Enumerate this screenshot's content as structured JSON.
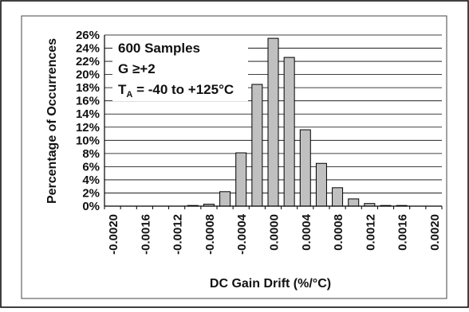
{
  "chart_data": {
    "type": "bar",
    "categories": [
      "-0.0020",
      "-0.0018",
      "-0.0016",
      "-0.0014",
      "-0.0012",
      "-0.0010",
      "-0.0008",
      "-0.0006",
      "-0.0004",
      "-0.0002",
      "0.0000",
      "0.0002",
      "0.0004",
      "0.0006",
      "0.0008",
      "0.0010",
      "0.0012",
      "0.0014",
      "0.0016",
      "0.0018",
      "0.0020"
    ],
    "tick_labels": [
      "-0.0020",
      "-0.0016",
      "-0.0012",
      "-0.0008",
      "-0.0004",
      "0.0000",
      "0.0004",
      "0.0008",
      "0.0012",
      "0.0016",
      "0.0020"
    ],
    "values": [
      0,
      0,
      0,
      0,
      0,
      0.1,
      0.3,
      2.2,
      8.1,
      18.5,
      25.5,
      22.6,
      11.6,
      6.5,
      2.8,
      1.1,
      0.4,
      0.1,
      0.1,
      0,
      0
    ],
    "y_ticks": [
      "0%",
      "2%",
      "4%",
      "6%",
      "8%",
      "10%",
      "12%",
      "14%",
      "16%",
      "18%",
      "20%",
      "22%",
      "24%",
      "26%"
    ],
    "ylim": [
      0,
      26
    ],
    "xlabel": "DC Gain Drift (%/°C)",
    "ylabel": "Percentage of Occurrences",
    "grid": "horizontal",
    "bar_color": "#c0c0c0",
    "annotation": {
      "line1": "600 Samples",
      "line2": "G ≥+2",
      "line3_main": "T",
      "line3_sub": "A",
      "line3_rest": " = -40 to +125°C"
    }
  }
}
